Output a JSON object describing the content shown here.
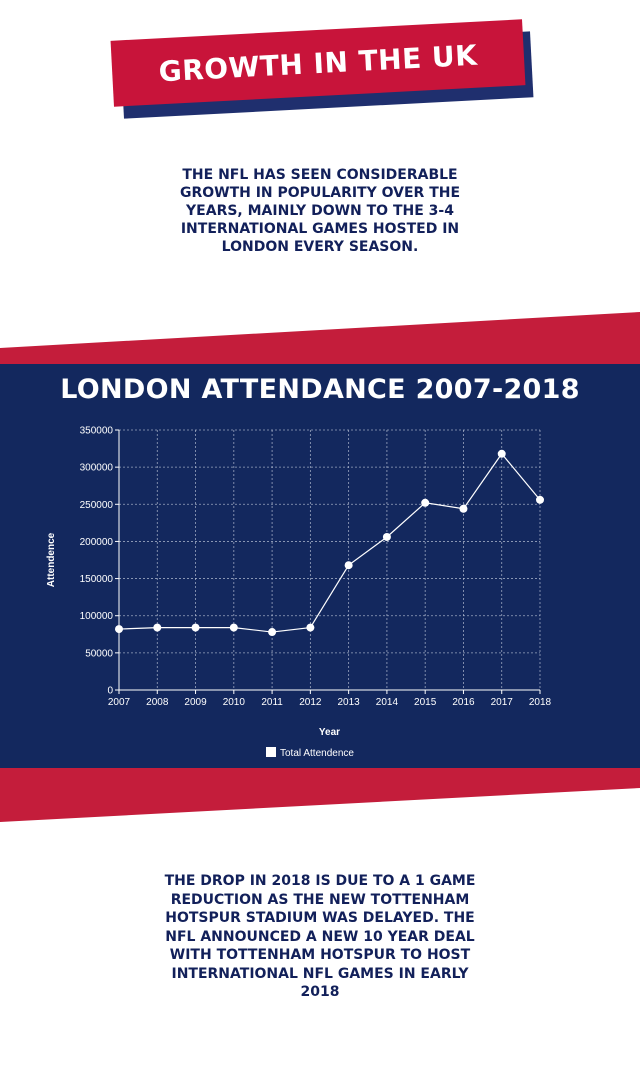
{
  "header": {
    "title": "GROWTH IN THE UK"
  },
  "intro_text": "The NFL has seen considerable growth in popularity over the years, mainly down to the 3-4 international games hosted in London every season.",
  "outro_text": "The drop in 2018 is due to a 1 game reduction as the new Tottenham Hotspur Stadium was delayed. The NFL announced a new 10 year deal with Tottenham Hotspur to host international NFL games in early 2018",
  "colors": {
    "banner_red": "#c8143a",
    "banner_navy": "#1f2f6e",
    "panel_navy": "#13285e",
    "panel_red": "#c41d3b",
    "text_navy": "#12205a",
    "line": "#ffffff"
  },
  "chart_data": {
    "type": "line",
    "title": "LONDON ATTENDANCE 2007-2018",
    "xlabel": "Year",
    "ylabel": "Attendence",
    "x": [
      2007,
      2008,
      2009,
      2010,
      2011,
      2012,
      2013,
      2014,
      2015,
      2016,
      2017,
      2018
    ],
    "yticks": [
      0,
      50000,
      100000,
      150000,
      200000,
      250000,
      300000,
      350000
    ],
    "ylim": [
      0,
      350000
    ],
    "grid": true,
    "legend": "bottom",
    "series": [
      {
        "name": "Total Attendence",
        "values": [
          82000,
          84000,
          84000,
          84000,
          78000,
          84000,
          168000,
          206000,
          252000,
          244000,
          318000,
          256000
        ]
      }
    ]
  }
}
